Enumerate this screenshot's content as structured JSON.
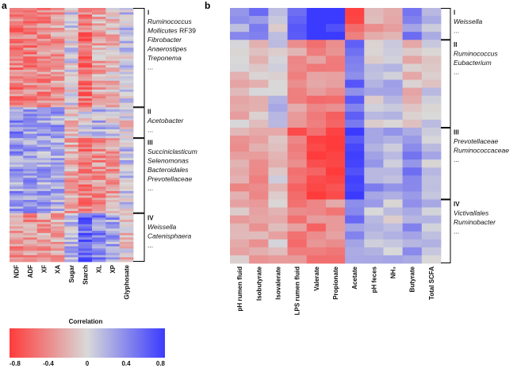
{
  "chart_data": [
    {
      "type": "heatmap",
      "panel": "a",
      "columns": [
        "NDF",
        "ADF",
        "XF",
        "XA",
        "Sugar",
        "Starch",
        "XL",
        "XP",
        "Glyphosate"
      ],
      "clusters": [
        {
          "id": "I",
          "taxa": [
            {
              "main": "Ruminococcus",
              "suffix": ""
            },
            {
              "main": "Mollicutes",
              "suffix": " RF39"
            },
            {
              "main": "Fibrobacter",
              "suffix": ""
            },
            {
              "main": "Anaerostipes",
              "suffix": ""
            },
            {
              "main": "Treponema",
              "suffix": ""
            }
          ],
          "ellipsis": "...",
          "rows": 45,
          "profile": [
            -0.45,
            -0.45,
            -0.4,
            -0.3,
            0.05,
            -0.5,
            -0.25,
            -0.15,
            0.1
          ]
        },
        {
          "id": "II",
          "taxa": [
            {
              "main": "Acetobacter",
              "suffix": ""
            }
          ],
          "ellipsis": "...",
          "rows": 14,
          "profile": [
            0.4,
            0.35,
            0.35,
            0.3,
            -0.2,
            0.0,
            0.15,
            0.1,
            -0.05
          ]
        },
        {
          "id": "III",
          "taxa": [
            {
              "main": "Succiniclasticum",
              "suffix": ""
            },
            {
              "main": "Selenomonas",
              "suffix": ""
            },
            {
              "main": "Bacteroidales",
              "suffix": ""
            },
            {
              "main": "Prevotellaceae",
              "suffix": ""
            }
          ],
          "ellipsis": "...",
          "rows": 34,
          "profile": [
            0.3,
            0.3,
            0.25,
            0.2,
            -0.25,
            -0.45,
            -0.35,
            -0.3,
            0.1
          ]
        },
        {
          "id": "IV",
          "taxa": [
            {
              "main": "Weissella",
              "suffix": ""
            },
            {
              "main": "Catenisphaera",
              "suffix": ""
            }
          ],
          "ellipsis": "...",
          "rows": 22,
          "profile": [
            -0.35,
            -0.35,
            -0.3,
            -0.25,
            0.15,
            0.6,
            0.4,
            0.3,
            -0.1
          ]
        }
      ]
    },
    {
      "type": "heatmap",
      "panel": "b",
      "columns": [
        "pH rumen fluid",
        "Isobutyrate",
        "Isovalerate",
        "LPS rumen fluid",
        "Valerate",
        "Propionate",
        "Acetate",
        "pH feces",
        "NH₃",
        "Butyrate",
        "Total SCFA"
      ],
      "clusters": [
        {
          "id": "I",
          "taxa": [
            {
              "main": "Weissella",
              "suffix": ""
            }
          ],
          "ellipsis": "...",
          "rows": 4,
          "profile": [
            0.25,
            0.4,
            0.1,
            0.55,
            0.75,
            0.85,
            -0.6,
            -0.25,
            -0.2,
            0.4,
            0.15
          ]
        },
        {
          "id": "II",
          "taxa": [
            {
              "main": "Ruminococcus",
              "suffix": ""
            },
            {
              "main": "Eubacterium",
              "suffix": ""
            }
          ],
          "ellipsis": "...",
          "rows": 11,
          "profile": [
            -0.15,
            -0.1,
            0.1,
            -0.3,
            -0.4,
            -0.45,
            0.5,
            0.1,
            0.15,
            -0.1,
            0.05
          ]
        },
        {
          "id": "III",
          "taxa": [
            {
              "main": "Prevotellaceae",
              "suffix": ""
            },
            {
              "main": "Ruminococcaceae",
              "suffix": ""
            }
          ],
          "ellipsis": "...",
          "rows": 9,
          "profile": [
            -0.3,
            -0.35,
            -0.1,
            -0.55,
            -0.7,
            -0.7,
            0.8,
            0.3,
            0.2,
            0.4,
            0.1
          ]
        },
        {
          "id": "IV",
          "taxa": [
            {
              "main": "Victivallales",
              "suffix": ""
            },
            {
              "main": "Ruminobacter",
              "suffix": ""
            }
          ],
          "ellipsis": "...",
          "rows": 8,
          "profile": [
            -0.2,
            -0.2,
            -0.15,
            -0.4,
            -0.45,
            -0.4,
            0.4,
            0.15,
            0.1,
            0.3,
            0.15
          ]
        }
      ]
    }
  ],
  "colorbar": {
    "title": "Correlation",
    "ticks": [
      "-0.8",
      "-0.4",
      "0",
      "0.4",
      "0.8"
    ],
    "range": [
      -0.8,
      0.8
    ],
    "neg_color": "#ff3b3b",
    "mid_color": "#d9d9d9",
    "pos_color": "#3b3bff"
  }
}
